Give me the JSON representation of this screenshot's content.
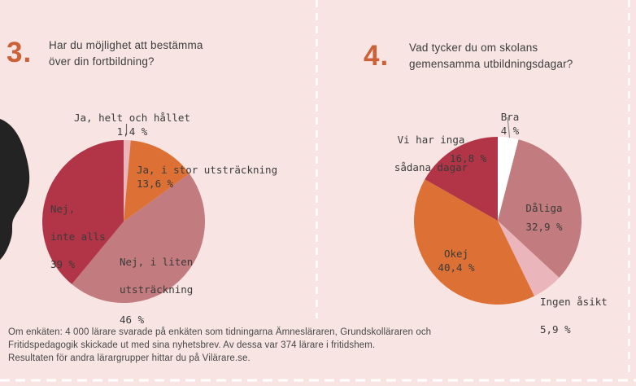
{
  "page": {
    "background_color": "#f8e5e3",
    "accent_color": "#cc6138",
    "divider_color": "#ffffff"
  },
  "panels": [
    {
      "number": "3.",
      "question": "Har du möjlighet att bestämma över din fortbildning?"
    },
    {
      "number": "4.",
      "question": "Vad tycker du om skolans gemensamma utbildningsdagar?"
    }
  ],
  "chart_data": [
    {
      "type": "pie",
      "title": "Har du möjlighet att bestämma över din fortbildning?",
      "start_angle_deg": 0,
      "direction": "clockwise",
      "legend": "none",
      "slices": [
        {
          "label": "Ja, helt och hållet",
          "value": 1.4,
          "pct_label": "1,4 %",
          "color": "#eab5bb"
        },
        {
          "label": "Ja, i stor utsträckning",
          "value": 13.6,
          "pct_label": "13,6 %",
          "color": "#dd7034"
        },
        {
          "label": "Nej, i liten utsträckning",
          "value": 46,
          "pct_label": "46 %",
          "color": "#c27b7e",
          "label_lines": {
            "0": "Nej, i liten",
            "1": "utsträckning"
          }
        },
        {
          "label": "Nej, inte alls",
          "value": 39,
          "pct_label": "39 %",
          "color": "#b13447",
          "label_lines": {
            "0": "Nej,",
            "1": "inte alls"
          }
        }
      ]
    },
    {
      "type": "pie",
      "title": "Vad tycker du om skolans gemensamma utbildningsdagar?",
      "start_angle_deg": 0,
      "direction": "clockwise",
      "legend": "none",
      "slices": [
        {
          "label": "Bra",
          "value": 4,
          "pct_label": "4 %",
          "color": "#ffffff"
        },
        {
          "label": "Dåliga",
          "value": 32.9,
          "pct_label": "32,9 %",
          "color": "#c27b7e"
        },
        {
          "label": "Ingen åsikt",
          "value": 5.9,
          "pct_label": "5,9 %",
          "color": "#eab5bb"
        },
        {
          "label": "Okej",
          "value": 40.4,
          "pct_label": "40,4 %",
          "color": "#dd7034"
        },
        {
          "label": "Vi har inga sådana dagar",
          "value": 16.8,
          "pct_label": "16,8 %",
          "color": "#b13447",
          "label_lines": {
            "0": "Vi har inga",
            "1": "sådana dagar"
          }
        }
      ]
    }
  ],
  "footer": {
    "lines": {
      "0": "Om enkäten: 4 000 lärare svarade på enkäten som tidningarna Ämnesläraren, Grundskolläraren och",
      "1": "Fritidspedagogik skickade ut med sina nyhetsbrev. Av dessa var 374 lärare i fritidshem.",
      "2": "Resultaten för andra lärargrupper hittar du på Vilärare.se."
    }
  }
}
